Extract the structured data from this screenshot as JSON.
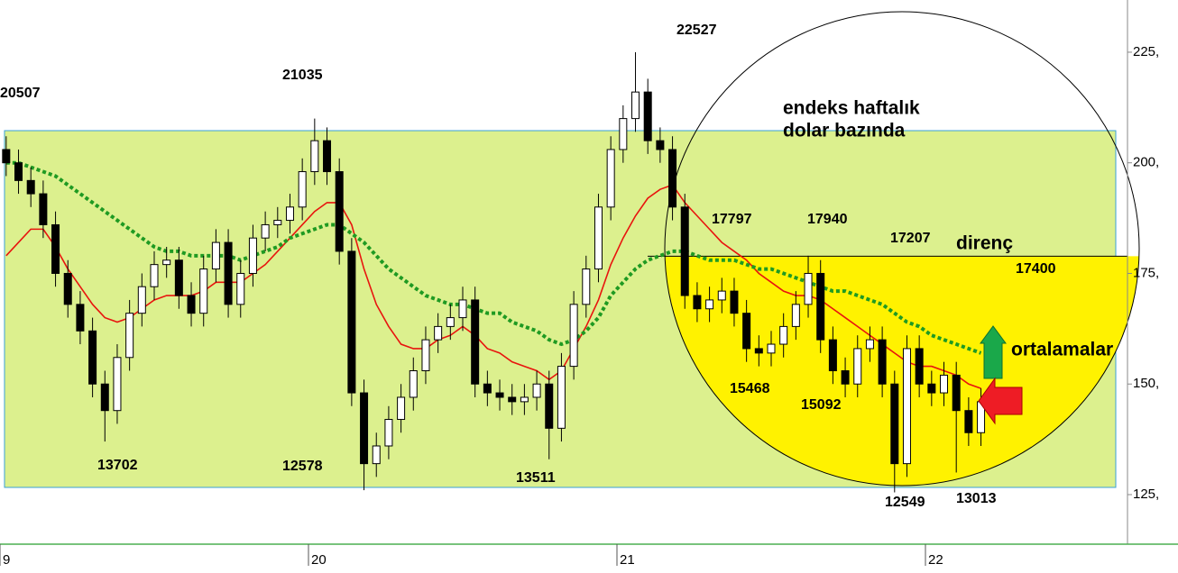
{
  "chart_data": {
    "type": "candlestick",
    "xlim": [
      2019,
      2022.655
    ],
    "ylim": [
      113.8,
      236.8
    ],
    "yticks": [
      {
        "value": 125,
        "label": "125,"
      },
      {
        "value": 150,
        "label": "150,"
      },
      {
        "value": 175,
        "label": "175,"
      },
      {
        "value": 200,
        "label": "200,"
      },
      {
        "value": 225,
        "label": "225,"
      }
    ],
    "xticks": [
      {
        "value": 2019,
        "label": "9"
      },
      {
        "value": 2020,
        "label": "20"
      },
      {
        "value": 2021,
        "label": "21"
      },
      {
        "value": 2022,
        "label": "22"
      }
    ],
    "up_color": "#ffffff",
    "down_color": "#000000",
    "x": [
      2019.02,
      2019.06,
      2019.1,
      2019.14,
      2019.18,
      2019.22,
      2019.26,
      2019.3,
      2019.34,
      2019.38,
      2019.42,
      2019.46,
      2019.5,
      2019.54,
      2019.58,
      2019.62,
      2019.66,
      2019.7,
      2019.74,
      2019.78,
      2019.82,
      2019.86,
      2019.9,
      2019.94,
      2019.98,
      2020.02,
      2020.06,
      2020.1,
      2020.14,
      2020.18,
      2020.22,
      2020.26,
      2020.3,
      2020.34,
      2020.38,
      2020.42,
      2020.46,
      2020.5,
      2020.54,
      2020.58,
      2020.62,
      2020.66,
      2020.7,
      2020.74,
      2020.78,
      2020.82,
      2020.86,
      2020.9,
      2020.94,
      2020.98,
      2021.02,
      2021.06,
      2021.1,
      2021.14,
      2021.18,
      2021.22,
      2021.26,
      2021.3,
      2021.34,
      2021.38,
      2021.42,
      2021.46,
      2021.5,
      2021.54,
      2021.58,
      2021.62,
      2021.66,
      2021.7,
      2021.74,
      2021.78,
      2021.82,
      2021.86,
      2021.9,
      2021.94,
      2021.98,
      2022.02,
      2022.06,
      2022.1,
      2022.14,
      2022.18
    ],
    "open": [
      203,
      200,
      196,
      193,
      186,
      175,
      168,
      162,
      150,
      144,
      156,
      166,
      172,
      177,
      178,
      170,
      166,
      176,
      182,
      168,
      175,
      183,
      186,
      187,
      190,
      198,
      205,
      198,
      180,
      148,
      132,
      136,
      142,
      147,
      153,
      160,
      163,
      165,
      169,
      150,
      148,
      147,
      146,
      147,
      150,
      140,
      154,
      168,
      176,
      190,
      203,
      210,
      216,
      205,
      203,
      190,
      170,
      167,
      169,
      171,
      166,
      158,
      157,
      159,
      163,
      168,
      175,
      160,
      153,
      150,
      158,
      160,
      150,
      132,
      158,
      150,
      148,
      152,
      144,
      139
    ],
    "high": [
      206,
      203,
      199,
      196,
      189,
      178,
      171,
      165,
      153,
      159,
      169,
      175,
      180,
      181,
      181,
      173,
      179,
      185,
      185,
      178,
      186,
      189,
      190,
      193,
      201,
      210,
      208,
      201,
      183,
      151,
      139,
      145,
      150,
      156,
      163,
      166,
      168,
      172,
      172,
      153,
      151,
      150,
      150,
      153,
      153,
      157,
      171,
      179,
      193,
      206,
      213,
      225,
      219,
      208,
      206,
      193,
      173,
      172,
      174,
      174,
      169,
      161,
      162,
      166,
      171,
      179,
      178,
      163,
      156,
      161,
      163,
      163,
      153,
      161,
      161,
      153,
      155,
      155,
      147,
      149
    ],
    "low": [
      197,
      193,
      190,
      183,
      172,
      165,
      159,
      147,
      137,
      141,
      153,
      163,
      169,
      174,
      167,
      163,
      163,
      173,
      165,
      165,
      172,
      180,
      183,
      184,
      187,
      195,
      195,
      177,
      145,
      126,
      129,
      133,
      139,
      144,
      150,
      157,
      160,
      162,
      147,
      145,
      144,
      143,
      143,
      144,
      133,
      137,
      151,
      165,
      173,
      187,
      200,
      207,
      202,
      200,
      187,
      167,
      164,
      164,
      166,
      163,
      155,
      154,
      154,
      156,
      160,
      165,
      157,
      150,
      147,
      147,
      155,
      147,
      125.5,
      129,
      147,
      145,
      145,
      130,
      136,
      136
    ],
    "close": [
      200,
      196,
      193,
      186,
      175,
      168,
      162,
      150,
      144,
      156,
      166,
      172,
      177,
      178,
      170,
      166,
      176,
      182,
      168,
      175,
      183,
      186,
      187,
      190,
      198,
      205,
      198,
      180,
      148,
      132,
      136,
      142,
      147,
      153,
      160,
      163,
      165,
      169,
      150,
      148,
      147,
      146,
      147,
      150,
      140,
      154,
      168,
      176,
      190,
      203,
      210,
      216,
      205,
      203,
      190,
      170,
      167,
      169,
      171,
      166,
      158,
      157,
      159,
      163,
      168,
      175,
      160,
      153,
      150,
      158,
      160,
      150,
      132,
      158,
      150,
      148,
      152,
      144,
      139,
      146
    ],
    "lines": [
      {
        "color": "#e8140e",
        "style": "solid",
        "values": [
          179,
          182,
          185,
          185,
          181,
          176,
          172,
          168,
          165,
          164,
          165,
          167,
          169,
          170,
          170,
          170,
          171,
          173,
          173,
          173,
          175,
          177,
          180,
          183,
          186,
          189,
          191,
          191,
          186,
          176,
          168,
          163,
          159,
          158,
          158,
          160,
          161,
          163,
          161,
          158,
          157,
          155,
          154,
          153,
          151,
          153,
          158,
          163,
          169,
          177,
          183,
          188,
          192,
          194,
          195,
          191,
          188,
          185,
          182,
          180,
          178,
          175,
          173,
          171,
          170,
          170,
          169,
          167,
          165,
          163,
          161,
          159,
          157,
          155,
          154,
          154,
          153,
          152,
          150,
          149
        ]
      },
      {
        "color": "#1f9a22",
        "style": "dotted",
        "values": [
          200,
          200,
          199,
          198,
          197,
          195,
          193,
          191,
          189,
          187,
          185,
          183,
          181,
          180,
          180,
          179,
          179,
          179,
          179,
          178,
          179,
          180,
          181,
          183,
          184,
          185,
          186,
          186,
          184,
          182,
          179,
          176,
          174,
          172,
          170,
          169,
          168,
          168,
          167,
          166,
          166,
          164,
          163,
          162,
          160,
          159,
          160,
          162,
          165,
          170,
          173,
          176,
          178,
          179,
          180,
          180,
          179,
          178,
          178,
          178,
          177,
          176,
          176,
          175,
          174,
          173,
          172,
          171,
          171,
          170,
          169,
          168,
          166,
          164,
          163,
          161,
          160,
          159,
          158,
          157
        ]
      }
    ],
    "resistance_level": 178.9,
    "annotations": [
      "20507",
      "21035",
      "22527",
      "13702",
      "12578",
      "13511",
      "17797",
      "17940",
      "17207",
      "17400",
      "15468",
      "15092",
      "12549",
      "13013",
      "endeks haftalık",
      "dolar bazında",
      "direnç",
      "ortalamalar"
    ]
  }
}
